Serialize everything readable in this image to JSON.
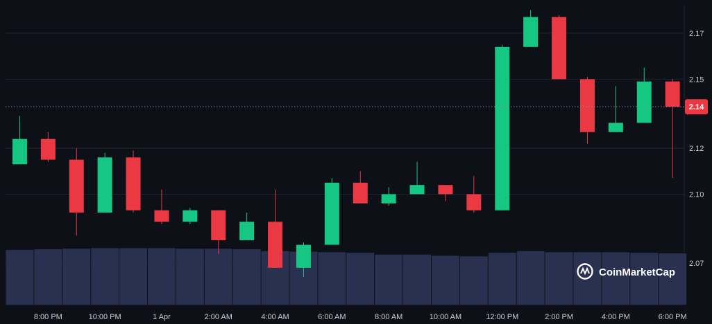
{
  "watermark": {
    "text": "CoinMarketCap"
  },
  "colors": {
    "background": "#0d1117",
    "grid": "#1f2530",
    "up": "#16c784",
    "down": "#ea3943",
    "volume": "#2a3150",
    "current_price_tag": "#ea3943"
  },
  "chart_data": {
    "type": "candlestick",
    "title": "",
    "xlabel": "",
    "ylabel": "",
    "ylim": [
      2.052,
      2.182
    ],
    "y_ticks": [
      {
        "value": 2.17,
        "label": "2.17"
      },
      {
        "value": 2.15,
        "label": "2.15"
      },
      {
        "value": 2.12,
        "label": "2.12"
      },
      {
        "value": 2.1,
        "label": "2.10"
      },
      {
        "value": 2.07,
        "label": "2.07"
      }
    ],
    "x_ticks": [
      "8:00 PM",
      "10:00 PM",
      "1 Apr",
      "2:00 AM",
      "4:00 AM",
      "6:00 AM",
      "8:00 AM",
      "10:00 AM",
      "12:00 PM",
      "2:00 PM",
      "4:00 PM",
      "6:00 PM"
    ],
    "current_price": {
      "value": 2.138,
      "label": "2.14"
    },
    "grid": true,
    "candles": [
      {
        "open": 2.113,
        "high": 2.134,
        "low": 2.113,
        "close": 2.124
      },
      {
        "open": 2.124,
        "high": 2.127,
        "low": 2.114,
        "close": 2.115
      },
      {
        "open": 2.115,
        "high": 2.12,
        "low": 2.082,
        "close": 2.092
      },
      {
        "open": 2.092,
        "high": 2.118,
        "low": 2.092,
        "close": 2.116
      },
      {
        "open": 2.116,
        "high": 2.119,
        "low": 2.092,
        "close": 2.093
      },
      {
        "open": 2.093,
        "high": 2.102,
        "low": 2.087,
        "close": 2.088
      },
      {
        "open": 2.088,
        "high": 2.094,
        "low": 2.087,
        "close": 2.093
      },
      {
        "open": 2.093,
        "high": 2.093,
        "low": 2.074,
        "close": 2.08
      },
      {
        "open": 2.08,
        "high": 2.092,
        "low": 2.08,
        "close": 2.088
      },
      {
        "open": 2.088,
        "high": 2.102,
        "low": 2.068,
        "close": 2.068
      },
      {
        "open": 2.068,
        "high": 2.079,
        "low": 2.064,
        "close": 2.078
      },
      {
        "open": 2.078,
        "high": 2.107,
        "low": 2.078,
        "close": 2.105
      },
      {
        "open": 2.105,
        "high": 2.11,
        "low": 2.096,
        "close": 2.096
      },
      {
        "open": 2.096,
        "high": 2.103,
        "low": 2.095,
        "close": 2.1
      },
      {
        "open": 2.1,
        "high": 2.114,
        "low": 2.1,
        "close": 2.104
      },
      {
        "open": 2.104,
        "high": 2.104,
        "low": 2.097,
        "close": 2.1
      },
      {
        "open": 2.1,
        "high": 2.108,
        "low": 2.092,
        "close": 2.093
      },
      {
        "open": 2.093,
        "high": 2.165,
        "low": 2.093,
        "close": 2.164
      },
      {
        "open": 2.164,
        "high": 2.18,
        "low": 2.164,
        "close": 2.177
      },
      {
        "open": 2.177,
        "high": 2.178,
        "low": 2.15,
        "close": 2.15
      },
      {
        "open": 2.15,
        "high": 2.151,
        "low": 2.122,
        "close": 2.127
      },
      {
        "open": 2.127,
        "high": 2.147,
        "low": 2.127,
        "close": 2.131
      },
      {
        "open": 2.131,
        "high": 2.155,
        "low": 2.131,
        "close": 2.149
      },
      {
        "open": 2.149,
        "high": 2.15,
        "low": 2.107,
        "close": 2.138
      }
    ],
    "volume_ylim": [
      0,
      1.0
    ],
    "volumes": [
      0.93,
      0.94,
      0.95,
      0.96,
      0.96,
      0.96,
      0.95,
      0.95,
      0.94,
      0.91,
      0.9,
      0.89,
      0.88,
      0.85,
      0.85,
      0.83,
      0.82,
      0.88,
      0.91,
      0.89,
      0.89,
      0.89,
      0.88,
      0.87
    ]
  }
}
